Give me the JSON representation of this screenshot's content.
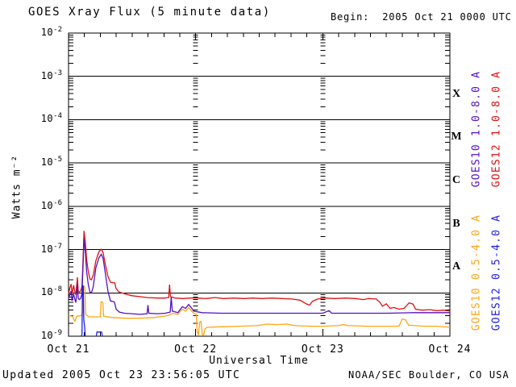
{
  "title": "GOES Xray Flux (5 minute data)",
  "begin_label": "Begin:  2005 Oct 21 0000 UTC",
  "footer": {
    "updated": "Updated 2005 Oct 23 23:56:05 UTC",
    "source": "NOAA/SEC Boulder, CO USA"
  },
  "chart_data": {
    "type": "line",
    "title": "GOES Xray Flux (5 minute data)",
    "xlabel": "Universal Time",
    "ylabel": "Watts m⁻²",
    "x_axis": {
      "start": "2005 Oct 21 0000 UTC",
      "end": "2005 Oct 24 0000 UTC",
      "span_days": 3,
      "tick_labels": [
        "Oct 21",
        "Oct 22",
        "Oct 23",
        "Oct 24"
      ],
      "minor_tick_hours": 3
    },
    "y_axis": {
      "scale": "log",
      "unit": "Watts m-2",
      "ylim": [
        1e-09,
        0.01
      ],
      "tick_exponents": [
        -2,
        -3,
        -4,
        -5,
        -6,
        -7,
        -8,
        -9
      ]
    },
    "grid": {
      "horizontal_decade_lines": true,
      "vertical_dashed_day_lines": [
        1,
        2
      ]
    },
    "flare_classes": [
      {
        "label": "X",
        "exp_range": [
          -4,
          -3
        ]
      },
      {
        "label": "M",
        "exp_range": [
          -5,
          -4
        ]
      },
      {
        "label": "C",
        "exp_range": [
          -6,
          -5
        ]
      },
      {
        "label": "B",
        "exp_range": [
          -7,
          -6
        ]
      },
      {
        "label": "A",
        "exp_range": [
          -8,
          -7
        ]
      }
    ],
    "legend": {
      "position": "right-vertical",
      "entries": [
        {
          "label": "GOES10 1.0-8.0 A",
          "color": "#5510c0",
          "column": 0,
          "group": "top"
        },
        {
          "label": "GOES12 1.0-8.0 A",
          "color": "#e01010",
          "column": 1,
          "group": "top"
        },
        {
          "label": "GOES10 0.5-4.0 A",
          "color": "#ffa514",
          "column": 0,
          "group": "bottom"
        },
        {
          "label": "GOES12 0.5-4.0 A",
          "color": "#2020e8",
          "column": 1,
          "group": "bottom"
        }
      ]
    },
    "series": [
      {
        "name": "GOES12 1.0-8.0 A",
        "color": "#e01010",
        "points": [
          [
            0.0,
            9.5e-09
          ],
          [
            0.01,
            1.3e-08
          ],
          [
            0.02,
            1.6e-08
          ],
          [
            0.028,
            9.5e-09
          ],
          [
            0.04,
            1.5e-08
          ],
          [
            0.05,
            1.05e-08
          ],
          [
            0.058,
            9e-09
          ],
          [
            0.07,
            2.3e-08
          ],
          [
            0.076,
            1.1e-08
          ],
          [
            0.085,
            1.05e-08
          ],
          [
            0.095,
            1.1e-08
          ],
          [
            0.105,
            1.4e-08
          ],
          [
            0.112,
            4e-08
          ],
          [
            0.122,
            2.7e-07
          ],
          [
            0.132,
            1.5e-07
          ],
          [
            0.142,
            6e-08
          ],
          [
            0.155,
            3.2e-08
          ],
          [
            0.168,
            2.1e-08
          ],
          [
            0.18,
            2e-08
          ],
          [
            0.195,
            2.6e-08
          ],
          [
            0.215,
            5.5e-08
          ],
          [
            0.24,
            9e-08
          ],
          [
            0.258,
            1.02e-07
          ],
          [
            0.272,
            8.5e-08
          ],
          [
            0.29,
            4.5e-08
          ],
          [
            0.31,
            2.4e-08
          ],
          [
            0.33,
            1.75e-08
          ],
          [
            0.365,
            1.7e-08
          ],
          [
            0.372,
            1.3e-08
          ],
          [
            0.395,
            1.05e-08
          ],
          [
            0.42,
            1e-08
          ],
          [
            0.46,
            9.2e-09
          ],
          [
            0.5,
            8.6e-09
          ],
          [
            0.56,
            8.2e-09
          ],
          [
            0.62,
            7.8e-09
          ],
          [
            0.7,
            7.6e-09
          ],
          [
            0.76,
            7.6e-09
          ],
          [
            0.788,
            7.8e-09
          ],
          [
            0.795,
            1.55e-08
          ],
          [
            0.802,
            8.2e-09
          ],
          [
            0.84,
            7.6e-09
          ],
          [
            0.9,
            7.4e-09
          ],
          [
            0.96,
            7.6e-09
          ],
          [
            1.02,
            7.6e-09
          ],
          [
            1.08,
            7.4e-09
          ],
          [
            1.15,
            7.8e-09
          ],
          [
            1.22,
            7.4e-09
          ],
          [
            1.3,
            7.6e-09
          ],
          [
            1.38,
            7.4e-09
          ],
          [
            1.45,
            7.6e-09
          ],
          [
            1.52,
            7.4e-09
          ],
          [
            1.6,
            7.6e-09
          ],
          [
            1.68,
            7.4e-09
          ],
          [
            1.76,
            7.2e-09
          ],
          [
            1.82,
            6.8e-09
          ],
          [
            1.87,
            5.6e-09
          ],
          [
            1.895,
            5.2e-09
          ],
          [
            1.92,
            6.4e-09
          ],
          [
            1.96,
            7.2e-09
          ],
          [
            2.02,
            7.6e-09
          ],
          [
            2.1,
            7.4e-09
          ],
          [
            2.18,
            7.6e-09
          ],
          [
            2.26,
            7.4e-09
          ],
          [
            2.32,
            7e-09
          ],
          [
            2.36,
            7.4e-09
          ],
          [
            2.42,
            7.2e-09
          ],
          [
            2.45,
            6e-09
          ],
          [
            2.47,
            4.9e-09
          ],
          [
            2.5,
            5.6e-09
          ],
          [
            2.53,
            4.4e-09
          ],
          [
            2.56,
            4.6e-09
          ],
          [
            2.6,
            4.2e-09
          ],
          [
            2.64,
            4.4e-09
          ],
          [
            2.68,
            5.9e-09
          ],
          [
            2.71,
            5.5e-09
          ],
          [
            2.73,
            4.2e-09
          ],
          [
            2.78,
            4e-09
          ],
          [
            2.84,
            4.1e-09
          ],
          [
            2.9,
            3.9e-09
          ],
          [
            2.95,
            4e-09
          ],
          [
            3.0,
            3.8e-09
          ]
        ]
      },
      {
        "name": "GOES10 0.5-4.0 A",
        "color": "#ffa514",
        "points": [
          [
            0.0,
            3e-09
          ],
          [
            0.03,
            2.9e-09
          ],
          [
            0.05,
            2.2e-09
          ],
          [
            0.065,
            2.9e-09
          ],
          [
            0.1,
            3e-09
          ],
          [
            0.112,
            3.4e-09
          ],
          [
            0.118,
            1.5e-08
          ],
          [
            0.128,
            1.3e-08
          ],
          [
            0.135,
            3.2e-09
          ],
          [
            0.16,
            2.8e-09
          ],
          [
            0.2,
            2.8e-09
          ],
          [
            0.25,
            2.8e-09
          ],
          [
            0.256,
            6.2e-09
          ],
          [
            0.27,
            6e-09
          ],
          [
            0.276,
            2.9e-09
          ],
          [
            0.34,
            2.7e-09
          ],
          [
            0.45,
            2.6e-09
          ],
          [
            0.56,
            2.6e-09
          ],
          [
            0.68,
            2.7e-09
          ],
          [
            0.78,
            3e-09
          ],
          [
            0.82,
            3.4e-09
          ],
          [
            0.86,
            3.2e-09
          ],
          [
            0.895,
            4.2e-09
          ],
          [
            0.92,
            3.8e-09
          ],
          [
            0.945,
            4.6e-09
          ],
          [
            0.965,
            3.9e-09
          ],
          [
            0.99,
            3.3e-09
          ],
          [
            1.005,
            3.2e-09
          ],
          [
            1.012,
            1.25e-09
          ],
          [
            1.022,
            1.1e-09
          ],
          [
            1.032,
            2.1e-09
          ],
          [
            1.042,
            2.2e-09
          ],
          [
            1.052,
            1.1e-09
          ],
          [
            1.062,
            1.05e-09
          ],
          [
            1.075,
            1.5e-09
          ],
          [
            1.09,
            1.6e-09
          ],
          [
            1.2,
            1.65e-09
          ],
          [
            1.35,
            1.7e-09
          ],
          [
            1.48,
            1.75e-09
          ],
          [
            1.56,
            1.9e-09
          ],
          [
            1.64,
            1.85e-09
          ],
          [
            1.72,
            1.9e-09
          ],
          [
            1.78,
            1.75e-09
          ],
          [
            1.9,
            1.7e-09
          ],
          [
            2.0,
            1.7e-09
          ],
          [
            2.12,
            1.75e-09
          ],
          [
            2.16,
            1.85e-09
          ],
          [
            2.2,
            1.75e-09
          ],
          [
            2.35,
            1.7e-09
          ],
          [
            2.5,
            1.7e-09
          ],
          [
            2.6,
            1.7e-09
          ],
          [
            2.625,
            2.5e-09
          ],
          [
            2.65,
            2.4e-09
          ],
          [
            2.675,
            1.8e-09
          ],
          [
            2.8,
            1.7e-09
          ],
          [
            2.9,
            1.7e-09
          ],
          [
            3.0,
            1.6e-09
          ]
        ]
      },
      {
        "name": "GOES10 1.0-8.0 A",
        "color": "#5510c0",
        "points": [
          [
            0.0,
            7.5e-09
          ],
          [
            0.01,
            9e-09
          ],
          [
            0.02,
            1.1e-08
          ],
          [
            0.028,
            6.5e-09
          ],
          [
            0.04,
            9.5e-09
          ],
          [
            0.05,
            7e-09
          ],
          [
            0.058,
            6e-09
          ],
          [
            0.07,
            1.6e-08
          ],
          [
            0.076,
            7.5e-09
          ],
          [
            0.085,
            7e-09
          ],
          [
            0.095,
            7.5e-09
          ],
          [
            0.105,
            9.5e-09
          ],
          [
            0.112,
            3e-08
          ],
          [
            0.122,
            1.8e-07
          ],
          [
            0.132,
            9e-08
          ],
          [
            0.142,
            3.2e-08
          ],
          [
            0.155,
            1.6e-08
          ],
          [
            0.168,
            1.05e-08
          ],
          [
            0.18,
            1e-08
          ],
          [
            0.195,
            1.4e-08
          ],
          [
            0.215,
            3.8e-08
          ],
          [
            0.24,
            6.5e-08
          ],
          [
            0.258,
            7.8e-08
          ],
          [
            0.272,
            6.2e-08
          ],
          [
            0.29,
            2.8e-08
          ],
          [
            0.31,
            1.1e-08
          ],
          [
            0.33,
            6.5e-09
          ],
          [
            0.36,
            6.2e-09
          ],
          [
            0.375,
            4.2e-09
          ],
          [
            0.4,
            3.6e-09
          ],
          [
            0.44,
            3.4e-09
          ],
          [
            0.5,
            3.3e-09
          ],
          [
            0.56,
            3.2e-09
          ],
          [
            0.618,
            3.3e-09
          ],
          [
            0.625,
            5.2e-09
          ],
          [
            0.632,
            3.4e-09
          ],
          [
            0.7,
            3.3e-09
          ],
          [
            0.76,
            3.4e-09
          ],
          [
            0.8,
            3.6e-09
          ],
          [
            0.808,
            8.2e-09
          ],
          [
            0.816,
            3.8e-09
          ],
          [
            0.86,
            3.5e-09
          ],
          [
            0.895,
            4.8e-09
          ],
          [
            0.92,
            4.4e-09
          ],
          [
            0.945,
            5.4e-09
          ],
          [
            0.965,
            4.6e-09
          ],
          [
            0.985,
            3.8e-09
          ],
          [
            1.05,
            3.5e-09
          ],
          [
            1.2,
            3.4e-09
          ],
          [
            1.4,
            3.4e-09
          ],
          [
            1.6,
            3.4e-09
          ],
          [
            1.8,
            3.4e-09
          ],
          [
            2.0,
            3.4e-09
          ],
          [
            2.05,
            3.9e-09
          ],
          [
            2.07,
            3.4e-09
          ],
          [
            2.3,
            3.4e-09
          ],
          [
            2.5,
            3.4e-09
          ],
          [
            2.7,
            3.5e-09
          ],
          [
            2.9,
            3.5e-09
          ],
          [
            3.0,
            3.5e-09
          ]
        ]
      },
      {
        "name": "GOES12 0.5-4.0 A",
        "color": "#2020e8",
        "points": [
          [
            0.1,
            8e-10
          ],
          [
            0.106,
            1.1e-09
          ],
          [
            0.11,
            1.5e-08
          ],
          [
            0.116,
            1.4e-08
          ],
          [
            0.12,
            2.4e-09
          ],
          [
            0.126,
            1.7e-09
          ],
          [
            0.132,
            8e-10
          ],
          [
            0.17,
            null
          ],
          [
            0.218,
            8e-10
          ],
          [
            0.224,
            1.25e-09
          ],
          [
            0.26,
            1.25e-09
          ],
          [
            0.266,
            8e-10
          ]
        ]
      }
    ]
  }
}
